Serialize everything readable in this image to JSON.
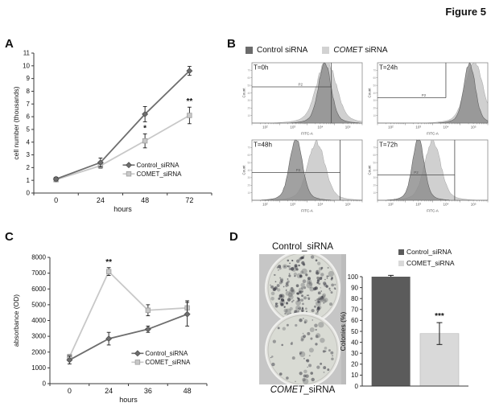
{
  "figure_title": "Figure 5",
  "panels": {
    "A": {
      "label": "A"
    },
    "B": {
      "label": "B",
      "legend": {
        "control": "Control siRNA",
        "comet_italic": "COMET",
        "comet_rest": " siRNA"
      }
    },
    "C": {
      "label": "C"
    },
    "D": {
      "label": "D",
      "plates": {
        "top_label": "Control_siRNA",
        "bottom_label_italic": "COMET",
        "bottom_label_rest": "_siRNA",
        "control_colony_density": "dense",
        "comet_colony_density": "sparse"
      },
      "legend": {
        "control": "Control_siRNA",
        "comet": "COMET_siRNA"
      }
    }
  },
  "colors": {
    "dark_series": "#6e6e6e",
    "light_series": "#c8c8c8",
    "bar_dark": "#5b5b5b",
    "bar_light": "#d9d9d9",
    "flow_dark": "#8c8c8c",
    "flow_light": "#cccccc",
    "error_bar": "#1a1a1a"
  },
  "chart_data": [
    {
      "id": "A",
      "type": "line",
      "categories": [
        "0",
        "24",
        "48",
        "72"
      ],
      "xlabel": "hours",
      "ylabel": "cell number (thousands)",
      "ylim": [
        0,
        11
      ],
      "ytick_step": 1,
      "legend_position": "inside-bottom-right",
      "series": [
        {
          "name": "Control_siRNA",
          "values": [
            1.1,
            2.4,
            6.2,
            9.6
          ],
          "errors": [
            0.15,
            0.35,
            0.6,
            0.35
          ],
          "color": "#6e6e6e",
          "marker": "diamond",
          "marker_stroke": "#4f4f4f"
        },
        {
          "name": "COMET_siRNA",
          "values": [
            1.05,
            2.15,
            4.1,
            6.1
          ],
          "errors": [
            0.15,
            0.2,
            0.55,
            0.65
          ],
          "color": "#c8c8c8",
          "marker": "square",
          "marker_stroke": "#9e9e9e"
        }
      ],
      "annotations": [
        {
          "text": "*",
          "series": 1,
          "point": 2
        },
        {
          "text": "**",
          "series": 1,
          "point": 3
        }
      ]
    },
    {
      "id": "B",
      "type": "flow-histograms",
      "xlabel": "FITC-A",
      "ylabel": "Count",
      "gate_label": "P2",
      "xticklabels": [
        "10²",
        "10³",
        "10⁴",
        "10⁵"
      ],
      "legend": [
        "Control siRNA",
        "COMET siRNA"
      ],
      "subplots": [
        {
          "title": "T=0h",
          "dark": {
            "peak": 0.66,
            "width": 0.055,
            "height": 0.93
          },
          "light": {
            "peak": 0.675,
            "width": 0.085,
            "height": 0.97
          },
          "gate_x": 0.72,
          "gate_y": 0.4,
          "gate_v": "full",
          "p2_x": 0.42
        },
        {
          "title": "T=24h",
          "dark": {
            "peak": 0.835,
            "width": 0.05,
            "height": 0.92
          },
          "light": {
            "peak": 0.875,
            "width": 0.075,
            "height": 0.97
          },
          "gate_x": 0.62,
          "gate_y": 0.58,
          "gate_v": "to-line",
          "p2_x": 0.4
        },
        {
          "title": "T=48h",
          "dark": {
            "peak": 0.4,
            "width": 0.055,
            "height": 0.97
          },
          "light": {
            "peak": 0.585,
            "width": 0.075,
            "height": 0.9
          },
          "gate_x": 0.8,
          "gate_y": 0.54,
          "gate_v": "full",
          "p2_x": 0.4
        },
        {
          "title": "T=72h",
          "dark": {
            "peak": 0.37,
            "width": 0.05,
            "height": 0.97
          },
          "light": {
            "peak": 0.5,
            "width": 0.07,
            "height": 0.92
          },
          "gate_x": 0.7,
          "gate_y": 0.58,
          "gate_v": "full",
          "p2_x": 0.33
        }
      ]
    },
    {
      "id": "C",
      "type": "line",
      "categories": [
        "0",
        "24",
        "36",
        "48"
      ],
      "xlabel": "hours",
      "ylabel": "absorbance (OD)",
      "ylim": [
        0,
        8000
      ],
      "ytick_step": 1000,
      "legend_position": "inside-bottom-right",
      "series": [
        {
          "name": "Control_siRNA",
          "values": [
            1500,
            2850,
            3450,
            4400
          ],
          "errors": [
            250,
            400,
            200,
            750
          ],
          "color": "#6e6e6e",
          "marker": "diamond",
          "marker_stroke": "#4f4f4f"
        },
        {
          "name": "COMET_siRNA",
          "values": [
            1700,
            7100,
            4650,
            4800
          ],
          "errors": [
            150,
            250,
            350,
            450
          ],
          "color": "#c8c8c8",
          "marker": "square",
          "marker_stroke": "#9e9e9e"
        }
      ],
      "annotations": [
        {
          "text": "**",
          "series": 1,
          "point": 1
        }
      ]
    },
    {
      "id": "D",
      "type": "bar",
      "categories": [
        "Control_siRNA",
        "COMET_siRNA"
      ],
      "values": [
        100,
        48
      ],
      "errors": [
        1.2,
        10
      ],
      "ylabel": "Colonies (%)",
      "ylim": [
        0,
        100
      ],
      "ytick_step": 10,
      "colors": [
        "#5b5b5b",
        "#d9d9d9"
      ],
      "annotations": [
        {
          "text": "***",
          "point": 1
        }
      ]
    }
  ]
}
